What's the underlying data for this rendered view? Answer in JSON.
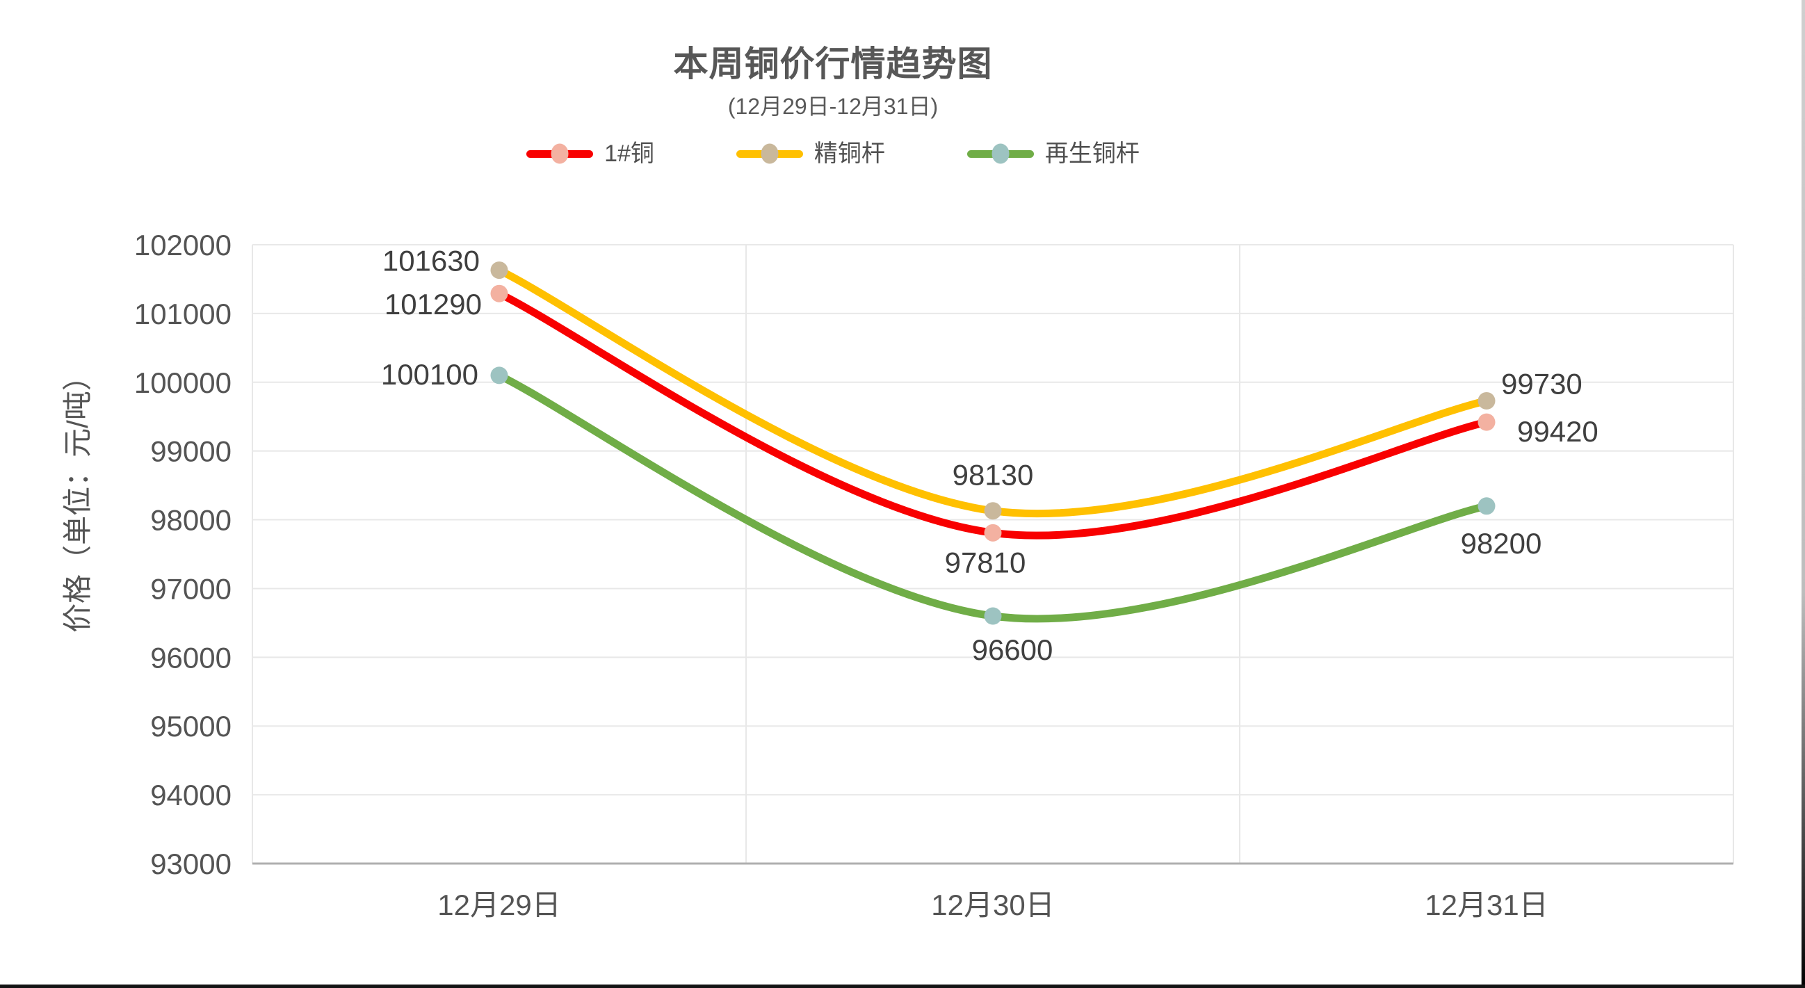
{
  "chart_data": {
    "type": "line",
    "title": "本周铜价行情趋势图",
    "subtitle": "(12月29日-12月31日)",
    "ylabel": "价格（单位：元/吨）",
    "xlabel": "",
    "categories": [
      "12月29日",
      "12月30日",
      "12月31日"
    ],
    "series": [
      {
        "name": "1#铜",
        "line_color": "#F80000",
        "marker_color": "#F3B1A1",
        "values": [
          101290,
          97810,
          99420
        ]
      },
      {
        "name": "精铜杆",
        "line_color": "#FFC000",
        "marker_color": "#C9B89C",
        "values": [
          101630,
          98130,
          99730
        ]
      },
      {
        "name": "再生铜杆",
        "line_color": "#70AD47",
        "marker_color": "#9DC3C1",
        "values": [
          100100,
          96600,
          98200
        ]
      }
    ],
    "ylim": [
      93000,
      102000
    ],
    "ytick_step": 1000,
    "y_ticks": [
      102000,
      101000,
      100000,
      99000,
      98000,
      97000,
      96000,
      95000,
      94000,
      93000
    ],
    "grid": true,
    "smooth": true,
    "markers": true,
    "data_labels": true,
    "legend_position": "top"
  },
  "style": {
    "text_color": "#545454",
    "data_label_color": "#3F3F3F",
    "grid_color": "#E8E8E8",
    "axis_color": "#AFAFAF",
    "background": "#FFFFFF"
  }
}
